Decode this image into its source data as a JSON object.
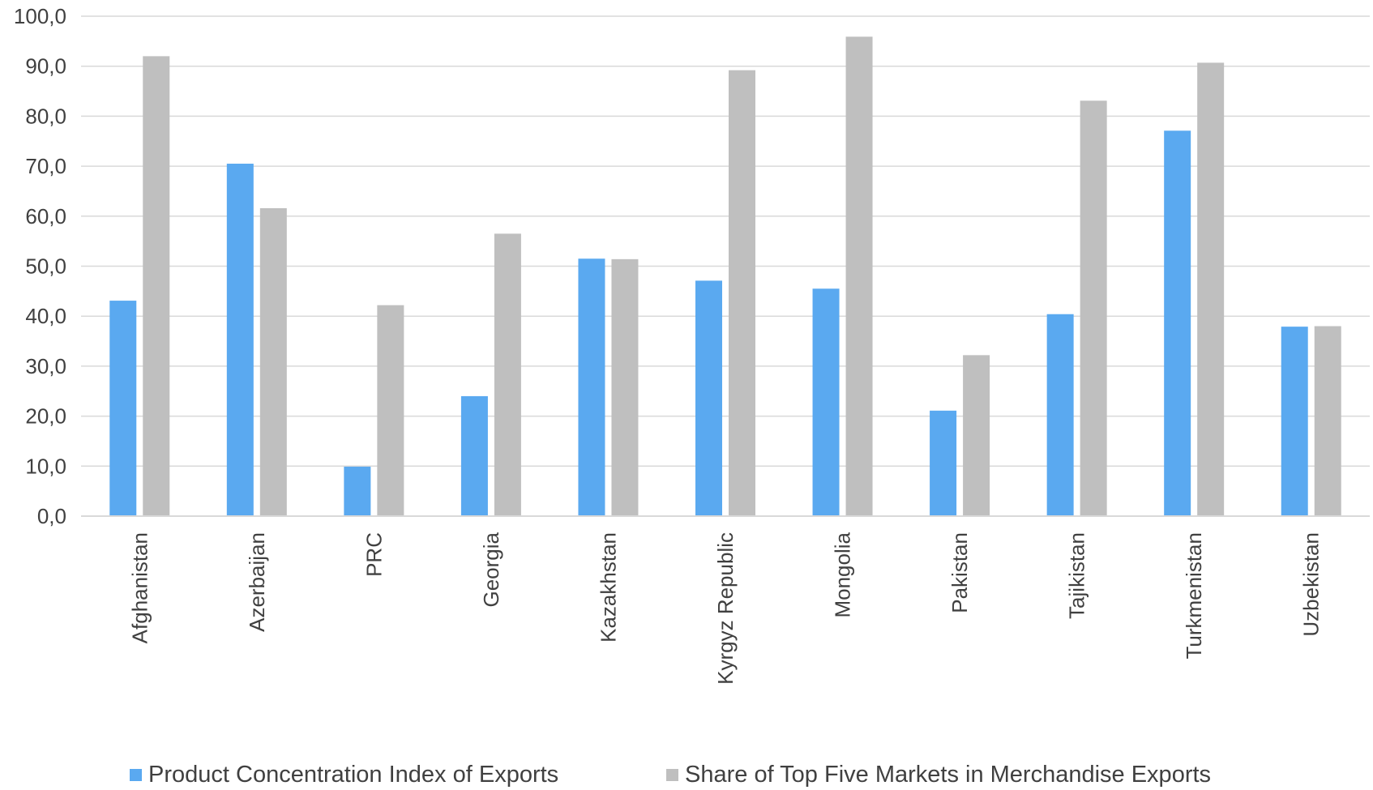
{
  "chart_data": {
    "type": "bar",
    "categories": [
      "Afghanistan",
      "Azerbaijan",
      "PRC",
      "Georgia",
      "Kazakhstan",
      "Kyrgyz Republic",
      "Mongolia",
      "Pakistan",
      "Tajikistan",
      "Turkmenistan",
      "Uzbekistan"
    ],
    "series": [
      {
        "name": "Product Concentration Index of Exports",
        "color": "#5aa9f0",
        "values": [
          43.1,
          70.5,
          9.9,
          24.0,
          51.5,
          47.1,
          45.5,
          21.1,
          40.4,
          77.1,
          37.9
        ]
      },
      {
        "name": "Share of Top Five Markets in Merchandise Exports",
        "color": "#bfbfbf",
        "values": [
          92.0,
          61.6,
          42.2,
          56.5,
          51.4,
          89.2,
          95.9,
          32.2,
          83.1,
          90.7,
          38.0
        ]
      }
    ],
    "y_ticks": [
      "0,0",
      "10,0",
      "20,0",
      "30,0",
      "40,0",
      "50,0",
      "60,0",
      "70,0",
      "80,0",
      "90,0",
      "100,0"
    ],
    "ylim": [
      0,
      100
    ],
    "grid": true,
    "legend_position": "bottom",
    "title": "",
    "xlabel": "",
    "ylabel": ""
  }
}
